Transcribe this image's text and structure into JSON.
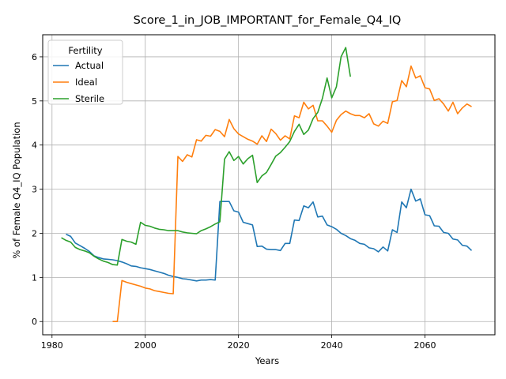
{
  "chart_data": {
    "type": "line",
    "title": "Score_1_in_JOB_IMPORTANT_for_Female_Q4_IQ",
    "xlabel": "Years",
    "ylabel": "% of Female Q4_IQ Population",
    "xlim": [
      1978,
      2075
    ],
    "ylim": [
      -0.3,
      6.5
    ],
    "xticks": [
      1980,
      2000,
      2020,
      2040,
      2060
    ],
    "yticks": [
      0,
      1,
      2,
      3,
      4,
      5,
      6
    ],
    "grid": true,
    "legend": {
      "title": "Fertility",
      "placement": "upper-left"
    },
    "series": [
      {
        "name": "Actual",
        "color": "#1f77b4",
        "x": [
          1983,
          1984,
          1985,
          1986,
          1987,
          1988,
          1989,
          1990,
          1991,
          1992,
          1993,
          1994,
          1995,
          1996,
          1997,
          1998,
          1999,
          2000,
          2001,
          2002,
          2003,
          2004,
          2005,
          2006,
          2007,
          2008,
          2009,
          2010,
          2011,
          2012,
          2013,
          2014,
          2015,
          2016,
          2017,
          2018,
          2019,
          2020,
          2021,
          2022,
          2023,
          2024,
          2025,
          2026,
          2027,
          2028,
          2029,
          2030,
          2031,
          2032,
          2033,
          2034,
          2035,
          2036,
          2037,
          2038,
          2039,
          2040,
          2041,
          2042,
          2043,
          2044,
          2045,
          2046,
          2047,
          2048,
          2049,
          2050,
          2051,
          2052,
          2053,
          2054,
          2055,
          2056,
          2057,
          2058,
          2059,
          2060,
          2061,
          2062,
          2063,
          2064,
          2065,
          2066,
          2067,
          2068,
          2069,
          2070
        ],
        "y": [
          1.98,
          1.93,
          1.78,
          1.72,
          1.66,
          1.59,
          1.49,
          1.45,
          1.42,
          1.41,
          1.4,
          1.38,
          1.35,
          1.31,
          1.26,
          1.25,
          1.22,
          1.2,
          1.18,
          1.15,
          1.12,
          1.09,
          1.05,
          1.02,
          1.0,
          0.97,
          0.96,
          0.94,
          0.92,
          0.94,
          0.94,
          0.95,
          0.94,
          2.72,
          2.72,
          2.72,
          2.51,
          2.48,
          2.25,
          2.22,
          2.19,
          1.7,
          1.71,
          1.64,
          1.63,
          1.63,
          1.61,
          1.77,
          1.77,
          2.3,
          2.29,
          2.62,
          2.58,
          2.71,
          2.37,
          2.39,
          2.19,
          2.15,
          2.09,
          2.0,
          1.95,
          1.88,
          1.84,
          1.77,
          1.75,
          1.67,
          1.65,
          1.58,
          1.69,
          1.6,
          2.08,
          2.02,
          2.71,
          2.58,
          3.0,
          2.73,
          2.78,
          2.42,
          2.4,
          2.17,
          2.16,
          2.02,
          2.0,
          1.87,
          1.85,
          1.73,
          1.71,
          1.61
        ]
      },
      {
        "name": "Ideal",
        "color": "#ff7f0e",
        "x": [
          1993,
          1994,
          1995,
          1996,
          1997,
          1998,
          1999,
          2000,
          2001,
          2002,
          2003,
          2004,
          2005,
          2006,
          2007,
          2008,
          2009,
          2010,
          2011,
          2012,
          2013,
          2014,
          2015,
          2016,
          2017,
          2018,
          2019,
          2020,
          2021,
          2022,
          2023,
          2024,
          2025,
          2026,
          2027,
          2028,
          2029,
          2030,
          2031,
          2032,
          2033,
          2034,
          2035,
          2036,
          2037,
          2038,
          2039,
          2040,
          2041,
          2042,
          2043,
          2044,
          2045,
          2046,
          2047,
          2048,
          2049,
          2050,
          2051,
          2052,
          2053,
          2054,
          2055,
          2056,
          2057,
          2058,
          2059,
          2060,
          2061,
          2062,
          2063,
          2064,
          2065,
          2066,
          2067,
          2068,
          2069,
          2070
        ],
        "y": [
          0.0,
          0.0,
          0.93,
          0.89,
          0.86,
          0.83,
          0.8,
          0.76,
          0.74,
          0.7,
          0.68,
          0.66,
          0.64,
          0.63,
          3.74,
          3.63,
          3.78,
          3.73,
          4.12,
          4.09,
          4.22,
          4.2,
          4.35,
          4.31,
          4.19,
          4.58,
          4.37,
          4.25,
          4.19,
          4.13,
          4.09,
          4.02,
          4.21,
          4.08,
          4.36,
          4.26,
          4.11,
          4.21,
          4.14,
          4.66,
          4.62,
          4.97,
          4.82,
          4.9,
          4.55,
          4.55,
          4.43,
          4.29,
          4.56,
          4.69,
          4.77,
          4.71,
          4.67,
          4.67,
          4.62,
          4.71,
          4.48,
          4.43,
          4.54,
          4.49,
          4.98,
          5.01,
          5.46,
          5.32,
          5.79,
          5.52,
          5.57,
          5.3,
          5.27,
          5.01,
          5.05,
          4.93,
          4.77,
          4.97,
          4.71,
          4.84,
          4.93,
          4.87
        ]
      },
      {
        "name": "Sterile",
        "color": "#2ca02c",
        "x": [
          1982,
          1983,
          1984,
          1985,
          1986,
          1987,
          1988,
          1989,
          1990,
          1991,
          1992,
          1993,
          1994,
          1995,
          1996,
          1997,
          1998,
          1999,
          2000,
          2001,
          2002,
          2003,
          2004,
          2005,
          2006,
          2007,
          2008,
          2009,
          2010,
          2011,
          2012,
          2013,
          2014,
          2015,
          2016,
          2017,
          2018,
          2019,
          2020,
          2021,
          2022,
          2023,
          2024,
          2025,
          2026,
          2027,
          2028,
          2029,
          2030,
          2031,
          2032,
          2033,
          2034,
          2035,
          2036,
          2037,
          2038,
          2039,
          2040,
          2041,
          2042,
          2043,
          2044
        ],
        "y": [
          1.9,
          1.84,
          1.8,
          1.68,
          1.63,
          1.6,
          1.56,
          1.48,
          1.42,
          1.37,
          1.34,
          1.29,
          1.28,
          1.86,
          1.82,
          1.8,
          1.75,
          2.25,
          2.18,
          2.16,
          2.12,
          2.09,
          2.08,
          2.06,
          2.06,
          2.06,
          2.03,
          2.01,
          2.0,
          1.99,
          2.06,
          2.1,
          2.15,
          2.21,
          2.26,
          3.68,
          3.85,
          3.65,
          3.74,
          3.57,
          3.69,
          3.77,
          3.15,
          3.3,
          3.38,
          3.56,
          3.75,
          3.83,
          3.95,
          4.08,
          4.31,
          4.47,
          4.24,
          4.34,
          4.6,
          4.74,
          5.06,
          5.52,
          5.07,
          5.32,
          6.0,
          6.21,
          5.55
        ]
      }
    ]
  }
}
